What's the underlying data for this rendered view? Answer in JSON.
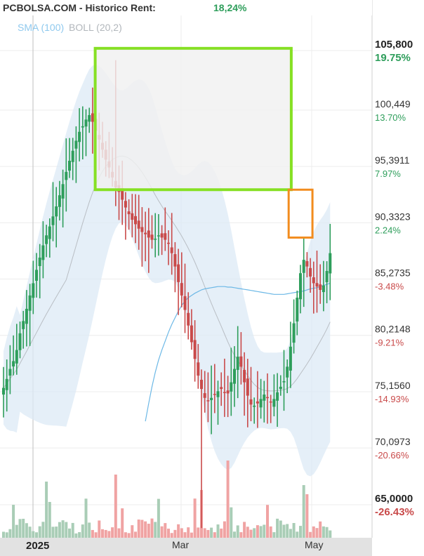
{
  "header": {
    "title": "PCBOLSA.COM - Historico  Rent:",
    "rent": "18,24%",
    "indicator_sma": "SMA (100)",
    "indicator_boll": "BOLL (20,2)"
  },
  "colors": {
    "up": "#2e9e5b",
    "down": "#c94a4a",
    "sma": "#6cb8e6",
    "bollinger_band": "#dce9f6",
    "bollinger_mid": "#b9bec4",
    "green_box": "#86e024",
    "orange_box": "#f28c1e",
    "vol_up": "#a9cdb6",
    "vol_down": "#f0a3a3"
  },
  "chart_data": {
    "type": "candlestick",
    "title": "PCBOLSA.COM - Historico",
    "x_labels": [
      "2025",
      "Mar",
      "May"
    ],
    "y_axis": {
      "ylim": [
        63.5,
        108.0
      ],
      "levels": [
        {
          "price": "105,800",
          "pct": "19.75%",
          "value": 105.8,
          "emph": true
        },
        {
          "price": "100,449",
          "pct": "13.70%",
          "value": 100.449,
          "emph": false
        },
        {
          "price": "95,3911",
          "pct": "7.97%",
          "value": 95.3911,
          "emph": false
        },
        {
          "price": "90,3323",
          "pct": "2.24%",
          "value": 90.3323,
          "emph": false
        },
        {
          "price": "85,2735",
          "pct": "-3.48%",
          "value": 85.2735,
          "emph": false
        },
        {
          "price": "80,2148",
          "pct": "-9.21%",
          "value": 80.2148,
          "emph": false
        },
        {
          "price": "75,1560",
          "pct": "-14.93%",
          "value": 75.156,
          "emph": false
        },
        {
          "price": "70,0973",
          "pct": "-20.66%",
          "value": 70.0973,
          "emph": false
        },
        {
          "price": "65,0000",
          "pct": "-26.43%",
          "value": 65.0,
          "emph": true
        }
      ]
    },
    "series": [
      {
        "name": "price",
        "close": [
          75.5,
          76.3,
          77.2,
          77.9,
          78.9,
          80.4,
          81.5,
          82.6,
          83.8,
          84.9,
          86.1,
          87.2,
          88.3,
          89.2,
          90.0,
          90.9,
          91.8,
          92.8,
          93.8,
          94.9,
          95.9,
          96.8,
          97.7,
          98.5,
          99.0,
          99.6,
          100.0,
          99.4,
          98.6,
          97.8,
          96.9,
          96.0,
          95.3,
          94.4,
          93.5,
          93.1,
          92.4,
          91.7,
          91.1,
          90.6,
          90.2,
          89.8,
          89.5,
          89.3,
          89.0,
          88.8,
          88.9,
          89.2,
          89.0,
          88.8,
          88.5,
          87.6,
          86.4,
          85.0,
          83.8,
          82.5,
          81.1,
          79.6,
          78.1,
          76.6,
          75.4,
          74.6,
          74.3,
          74.6,
          74.9,
          75.2,
          75.4,
          75.1,
          75.0,
          76.0,
          77.2,
          78.3,
          77.4,
          76.0,
          74.8,
          74.0,
          73.9,
          74.1,
          74.5,
          74.9,
          74.6,
          74.2,
          74.5,
          75.1,
          75.6,
          76.1,
          77.4,
          79.2,
          81.3,
          83.6,
          85.8,
          87.0,
          86.4,
          85.5,
          84.9,
          84.6,
          84.3,
          84.7,
          86.0,
          87.6
        ]
      },
      {
        "name": "SMA (100)",
        "values": [
          null,
          null,
          null,
          null,
          null,
          null,
          null,
          null,
          null,
          null,
          null,
          null,
          null,
          null,
          null,
          null,
          null,
          null,
          null,
          null,
          null,
          null,
          null,
          null,
          null,
          null,
          null,
          null,
          null,
          null,
          null,
          null,
          null,
          null,
          null,
          null,
          null,
          null,
          null,
          null,
          null,
          null,
          null,
          72.5,
          74.1,
          75.6,
          76.9,
          78.0,
          78.9,
          79.7,
          80.5,
          81.2,
          81.8,
          82.4,
          82.9,
          83.3,
          83.6,
          83.8,
          84.0,
          84.15,
          84.3,
          84.4,
          84.45,
          84.5,
          84.55,
          84.6,
          84.6,
          84.6,
          84.55,
          84.55,
          84.5,
          84.45,
          84.4,
          84.35,
          84.3,
          84.25,
          84.2,
          84.15,
          84.1,
          84.05,
          84.0,
          83.95,
          83.9,
          83.9,
          83.9,
          83.9,
          83.95,
          84.0,
          84.05,
          84.1,
          84.15,
          84.2,
          84.3,
          84.4,
          84.45,
          84.5,
          84.6,
          84.7,
          84.8,
          84.9
        ]
      }
    ],
    "highlight_zones": [
      {
        "name": "target-zone",
        "x_range": [
          28,
          87
        ],
        "y_range": [
          93.3,
          106.0
        ]
      },
      {
        "name": "stop-zone",
        "x_range": [
          86,
          93
        ],
        "y_range": [
          89.0,
          93.3
        ]
      }
    ],
    "grid": true
  }
}
